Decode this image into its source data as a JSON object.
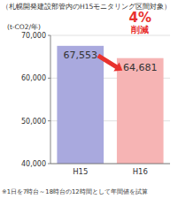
{
  "chart_data": {
    "type": "bar",
    "title": "（札幌開発建設部管内のH15モニタリング区間対象）",
    "y_label": "(t-CO2/年)",
    "categories": [
      "H15",
      "H16"
    ],
    "values": [
      67553,
      64681
    ],
    "value_labels": [
      "67,553",
      "64,681"
    ],
    "colors": [
      "#a9a9de",
      "#f6b4b4"
    ],
    "ylim": [
      40000,
      70000
    ],
    "yticks": [
      {
        "value": 40000,
        "label": "40,000"
      },
      {
        "value": 50000,
        "label": "50,000"
      },
      {
        "value": 60000,
        "label": "60,000"
      },
      {
        "value": 70000,
        "label": "70,000"
      }
    ],
    "grid": true,
    "data_labels": true,
    "annotations": [
      "4%",
      "削減"
    ],
    "footnote": "※1日を7時台～18時台の12時間として年間値を試算"
  }
}
